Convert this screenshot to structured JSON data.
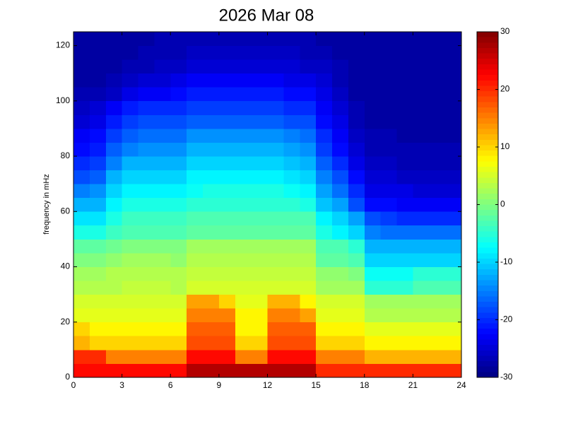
{
  "chart_data": {
    "type": "heatmap",
    "title": "2026 Mar 08",
    "y_label": "frequency in mHz",
    "colormap": "jet",
    "xlim": [
      0,
      24
    ],
    "xticks": [
      0,
      3,
      6,
      9,
      12,
      15,
      18,
      21,
      24
    ],
    "ylim": [
      0,
      125
    ],
    "yticks": [
      0,
      20,
      40,
      60,
      80,
      100,
      120
    ],
    "clim": [
      -30,
      30
    ],
    "cticks": [
      -30,
      -20,
      -10,
      0,
      10,
      20,
      30
    ],
    "xbins": [
      0,
      1,
      2,
      3,
      4,
      5,
      6,
      7,
      8,
      9,
      10,
      11,
      12,
      13,
      14,
      15,
      16,
      17,
      18,
      19,
      20,
      21,
      22,
      23,
      24
    ],
    "ybins": [
      0,
      5,
      10,
      15,
      20,
      25,
      30,
      35,
      40,
      45,
      50,
      55,
      60,
      65,
      70,
      75,
      80,
      85,
      90,
      95,
      100,
      105,
      110,
      115,
      120,
      125
    ],
    "values": [
      [
        22,
        22,
        22,
        22,
        22,
        22,
        22,
        27,
        27,
        27,
        27,
        27,
        27,
        27,
        27,
        20,
        20,
        20,
        20,
        20,
        20,
        20,
        20,
        20
      ],
      [
        20,
        20,
        15,
        15,
        15,
        15,
        15,
        22,
        22,
        22,
        15,
        15,
        22,
        22,
        22,
        15,
        15,
        15,
        12,
        12,
        12,
        12,
        12,
        12
      ],
      [
        12,
        10,
        10,
        10,
        10,
        10,
        10,
        18,
        18,
        18,
        10,
        10,
        18,
        18,
        18,
        10,
        10,
        10,
        8,
        8,
        8,
        8,
        8,
        8
      ],
      [
        10,
        8,
        8,
        8,
        8,
        8,
        8,
        17,
        17,
        17,
        8,
        8,
        17,
        17,
        17,
        8,
        8,
        8,
        6,
        6,
        6,
        6,
        6,
        6
      ],
      [
        6,
        6,
        6,
        6,
        6,
        6,
        6,
        15,
        15,
        15,
        8,
        8,
        15,
        15,
        13,
        6,
        6,
        6,
        3,
        3,
        3,
        3,
        3,
        3
      ],
      [
        5,
        5,
        5,
        5,
        5,
        5,
        5,
        13,
        13,
        10,
        6,
        6,
        12,
        12,
        8,
        5,
        5,
        5,
        2,
        2,
        2,
        2,
        2,
        2
      ],
      [
        3,
        3,
        3,
        4,
        4,
        4,
        3,
        5,
        5,
        5,
        5,
        5,
        5,
        5,
        5,
        2,
        2,
        2,
        -5,
        -5,
        -5,
        -3,
        -3,
        -3
      ],
      [
        2,
        2,
        3,
        3,
        3,
        3,
        3,
        4,
        4,
        4,
        4,
        4,
        4,
        4,
        4,
        1,
        1,
        0,
        -7,
        -7,
        -7,
        -5,
        -5,
        -5
      ],
      [
        0,
        0,
        1,
        2,
        2,
        2,
        1,
        3,
        3,
        3,
        3,
        3,
        3,
        3,
        3,
        -2,
        -2,
        -3,
        -10,
        -10,
        -10,
        -10,
        -10,
        -10
      ],
      [
        -2,
        -2,
        -1,
        0,
        0,
        0,
        0,
        2,
        2,
        2,
        2,
        2,
        2,
        2,
        2,
        -3,
        -3,
        -5,
        -12,
        -12,
        -12,
        -12,
        -12,
        -12
      ],
      [
        -6,
        -6,
        -4,
        -3,
        -3,
        -3,
        -3,
        -2,
        -2,
        -2,
        -2,
        -2,
        -2,
        -2,
        -2,
        -6,
        -8,
        -10,
        -15,
        -16,
        -16,
        -16,
        -16,
        -16
      ],
      [
        -9,
        -9,
        -6,
        -4,
        -4,
        -4,
        -4,
        -3,
        -3,
        -3,
        -3,
        -3,
        -3,
        -3,
        -3,
        -8,
        -10,
        -13,
        -18,
        -19,
        -20,
        -20,
        -20,
        -20
      ],
      [
        -12,
        -12,
        -8,
        -6,
        -6,
        -6,
        -6,
        -5,
        -5,
        -5,
        -5,
        -5,
        -5,
        -5,
        -6,
        -11,
        -13,
        -18,
        -22,
        -22,
        -23,
        -23,
        -23,
        -23
      ],
      [
        -15,
        -14,
        -10,
        -8,
        -8,
        -8,
        -8,
        -7,
        -6,
        -6,
        -6,
        -6,
        -6,
        -7,
        -8,
        -13,
        -16,
        -20,
        -24,
        -24,
        -24,
        -25,
        -25,
        -25
      ],
      [
        -18,
        -17,
        -12,
        -10,
        -10,
        -10,
        -10,
        -8,
        -8,
        -8,
        -8,
        -8,
        -8,
        -9,
        -10,
        -15,
        -18,
        -22,
        -25,
        -25,
        -26,
        -26,
        -26,
        -26
      ],
      [
        -20,
        -19,
        -15,
        -12,
        -12,
        -12,
        -12,
        -10,
        -10,
        -10,
        -10,
        -10,
        -10,
        -11,
        -12,
        -17,
        -20,
        -24,
        -26,
        -26,
        -27,
        -27,
        -27,
        -27
      ],
      [
        -22,
        -21,
        -17,
        -15,
        -14,
        -14,
        -14,
        -12,
        -12,
        -12,
        -12,
        -12,
        -12,
        -13,
        -14,
        -19,
        -22,
        -25,
        -27,
        -27,
        -27,
        -27,
        -27,
        -27
      ],
      [
        -23,
        -22,
        -19,
        -17,
        -16,
        -16,
        -16,
        -14,
        -14,
        -14,
        -14,
        -14,
        -14,
        -15,
        -16,
        -20,
        -23,
        -26,
        -27,
        -27,
        -28,
        -28,
        -28,
        -28
      ],
      [
        -25,
        -24,
        -21,
        -19,
        -18,
        -18,
        -18,
        -17,
        -17,
        -17,
        -17,
        -17,
        -17,
        -18,
        -18,
        -22,
        -24,
        -27,
        -28,
        -28,
        -28,
        -28,
        -28,
        -28
      ],
      [
        -26,
        -25,
        -23,
        -21,
        -20,
        -20,
        -20,
        -19,
        -19,
        -19,
        -19,
        -19,
        -19,
        -20,
        -20,
        -23,
        -25,
        -27,
        -28,
        -28,
        -28,
        -28,
        -28,
        -28
      ],
      [
        -27,
        -27,
        -26,
        -24,
        -23,
        -23,
        -22,
        -21,
        -21,
        -21,
        -21,
        -21,
        -21,
        -22,
        -22,
        -24,
        -26,
        -28,
        -28,
        -28,
        -28,
        -28,
        -28,
        -28
      ],
      [
        -28,
        -28,
        -27,
        -26,
        -25,
        -25,
        -24,
        -23,
        -23,
        -23,
        -23,
        -23,
        -23,
        -24,
        -24,
        -25,
        -27,
        -28,
        -28,
        -28,
        -28,
        -28,
        -28,
        -28
      ],
      [
        -28,
        -28,
        -28,
        -27,
        -27,
        -26,
        -26,
        -25,
        -25,
        -25,
        -25,
        -25,
        -25,
        -25,
        -26,
        -26,
        -27,
        -28,
        -28,
        -28,
        -28,
        -28,
        -28,
        -28
      ],
      [
        -28,
        -28,
        -28,
        -28,
        -27,
        -27,
        -27,
        -26,
        -26,
        -26,
        -26,
        -26,
        -26,
        -26,
        -27,
        -27,
        -28,
        -28,
        -28,
        -28,
        -28,
        -28,
        -28,
        -28
      ],
      [
        -28,
        -28,
        -28,
        -28,
        -28,
        -27,
        -27,
        -27,
        -27,
        -27,
        -27,
        -27,
        -27,
        -27,
        -27,
        -28,
        -28,
        -28,
        -28,
        -28,
        -28,
        -28,
        -28,
        -28
      ]
    ]
  }
}
